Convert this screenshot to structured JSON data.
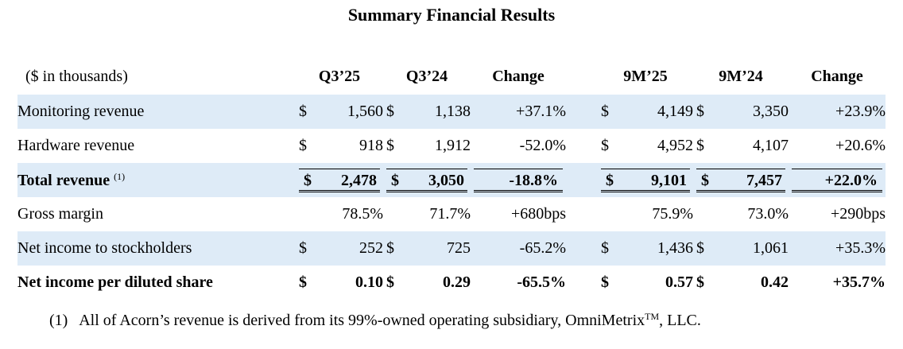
{
  "title": "Summary Financial Results",
  "table": {
    "unit_label": "($ in thousands)",
    "headers": [
      "Q3’25",
      "Q3’24",
      "Change",
      "9M’25",
      "9M’24",
      "Change"
    ],
    "rows": [
      {
        "label": "Monitoring revenue",
        "q3_25": {
          "cur": "$",
          "val": "1,560"
        },
        "q3_24": {
          "cur": "$",
          "val": "1,138"
        },
        "q3_change": "+37.1%",
        "m9_25": {
          "cur": "$",
          "val": "4,149"
        },
        "m9_24": {
          "cur": "$",
          "val": "3,350"
        },
        "m9_change": "+23.9%"
      },
      {
        "label": "Hardware revenue",
        "q3_25": {
          "cur": "$",
          "val": "918"
        },
        "q3_24": {
          "cur": "$",
          "val": "1,912"
        },
        "q3_change": "-52.0%",
        "m9_25": {
          "cur": "$",
          "val": "4,952"
        },
        "m9_24": {
          "cur": "$",
          "val": "4,107"
        },
        "m9_change": "+20.6%"
      },
      {
        "label": "Total revenue",
        "label_sup": "(1)",
        "q3_25": {
          "cur": "$",
          "val": "2,478"
        },
        "q3_24": {
          "cur": "$",
          "val": "3,050"
        },
        "q3_change": "-18.8%",
        "m9_25": {
          "cur": "$",
          "val": "9,101"
        },
        "m9_24": {
          "cur": "$",
          "val": "7,457"
        },
        "m9_change": "+22.0%"
      },
      {
        "label": "Gross margin",
        "q3_25": {
          "cur": "",
          "val": "78.5%"
        },
        "q3_24": {
          "cur": "",
          "val": "71.7%"
        },
        "q3_change": "+680bps",
        "m9_25": {
          "cur": "",
          "val": "75.9%"
        },
        "m9_24": {
          "cur": "",
          "val": "73.0%"
        },
        "m9_change": "+290bps"
      },
      {
        "label": "Net income to stockholders",
        "q3_25": {
          "cur": "$",
          "val": "252"
        },
        "q3_24": {
          "cur": "$",
          "val": "725"
        },
        "q3_change": "-65.2%",
        "m9_25": {
          "cur": "$",
          "val": "1,436"
        },
        "m9_24": {
          "cur": "$",
          "val": "1,061"
        },
        "m9_change": "+35.3%"
      },
      {
        "label": "Net income per diluted share",
        "q3_25": {
          "cur": "$",
          "val": "0.10"
        },
        "q3_24": {
          "cur": "$",
          "val": "0.29"
        },
        "q3_change": "-65.5%",
        "m9_25": {
          "cur": "$",
          "val": "0.57"
        },
        "m9_24": {
          "cur": "$",
          "val": "0.42"
        },
        "m9_change": "+35.7%"
      }
    ]
  },
  "footnote": {
    "marker": "(1)",
    "text_before": "All of Acorn’s revenue is derived from its 99%-owned operating subsidiary, OmniMetrix",
    "tm": "TM",
    "text_after": ", LLC."
  }
}
